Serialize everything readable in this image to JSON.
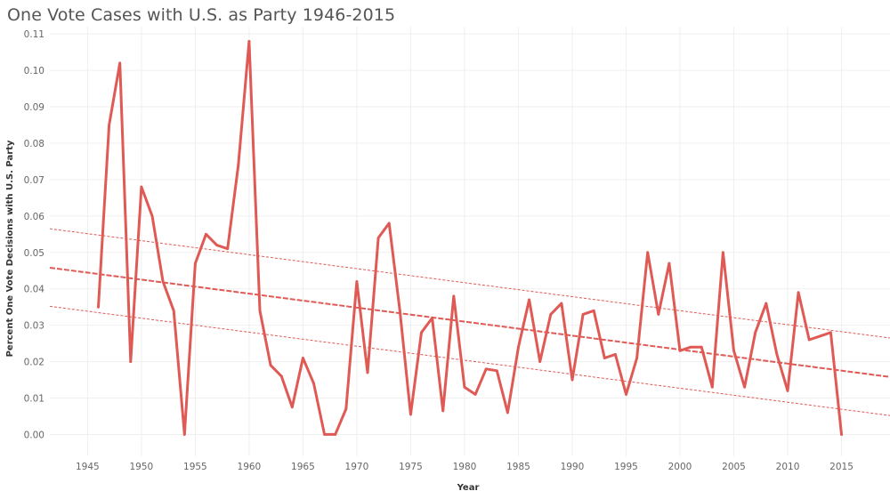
{
  "chart_data": {
    "type": "line",
    "title": "One Vote Cases with U.S. as Party 1946-2015",
    "xlabel": "Year",
    "ylabel": "Percent One Vote Decisions with U.S. Party",
    "xlim": [
      1941.5,
      2019.5
    ],
    "ylim": [
      -0.006,
      0.112
    ],
    "x_ticks": [
      1945,
      1950,
      1955,
      1960,
      1965,
      1970,
      1975,
      1980,
      1985,
      1990,
      1995,
      2000,
      2005,
      2010,
      2015
    ],
    "y_ticks": [
      0.0,
      0.01,
      0.02,
      0.03,
      0.04,
      0.05,
      0.06,
      0.07,
      0.08,
      0.09,
      0.1,
      0.11
    ],
    "y_tick_labels": [
      "0.00",
      "0.01",
      "0.02",
      "0.03",
      "0.04",
      "0.05",
      "0.06",
      "0.07",
      "0.08",
      "0.09",
      "0.10",
      "0.11"
    ],
    "grid": true,
    "series": [
      {
        "name": "Percent One Vote Decisions with U.S. Party",
        "color": "#e05a55",
        "x": [
          1946,
          1947,
          1948,
          1949,
          1950,
          1951,
          1952,
          1953,
          1954,
          1955,
          1956,
          1957,
          1958,
          1959,
          1960,
          1961,
          1962,
          1963,
          1964,
          1965,
          1966,
          1967,
          1968,
          1969,
          1970,
          1971,
          1972,
          1973,
          1974,
          1975,
          1976,
          1977,
          1978,
          1979,
          1980,
          1981,
          1982,
          1983,
          1984,
          1985,
          1986,
          1987,
          1988,
          1989,
          1990,
          1991,
          1992,
          1993,
          1994,
          1995,
          1996,
          1997,
          1998,
          1999,
          2000,
          2001,
          2002,
          2003,
          2004,
          2005,
          2006,
          2007,
          2008,
          2009,
          2010,
          2011,
          2012,
          2013,
          2014,
          2015
        ],
        "values": [
          0.035,
          0.085,
          0.102,
          0.02,
          0.068,
          0.06,
          0.042,
          0.034,
          0.0,
          0.047,
          0.055,
          0.052,
          0.051,
          0.074,
          0.108,
          0.034,
          0.019,
          0.016,
          0.0075,
          0.021,
          0.014,
          0.0,
          0.0,
          0.007,
          0.042,
          0.017,
          0.054,
          0.058,
          0.034,
          0.0055,
          0.028,
          0.032,
          0.0065,
          0.038,
          0.013,
          0.011,
          0.018,
          0.0175,
          0.006,
          0.024,
          0.037,
          0.02,
          0.033,
          0.036,
          0.015,
          0.033,
          0.034,
          0.021,
          0.022,
          0.011,
          0.021,
          0.05,
          0.033,
          0.047,
          0.023,
          0.024,
          0.024,
          0.013,
          0.05,
          0.023,
          0.013,
          0.028,
          0.036,
          0.022,
          0.012,
          0.039,
          0.026,
          0.027,
          0.028,
          0.0
        ]
      }
    ],
    "trend_line": {
      "color": "#e05a55",
      "x": [
        1941.5,
        2019.5
      ],
      "fit": [
        0.0458,
        0.0158
      ],
      "upper": [
        0.0565,
        0.0265
      ],
      "lower": [
        0.0352,
        0.0052
      ]
    }
  }
}
